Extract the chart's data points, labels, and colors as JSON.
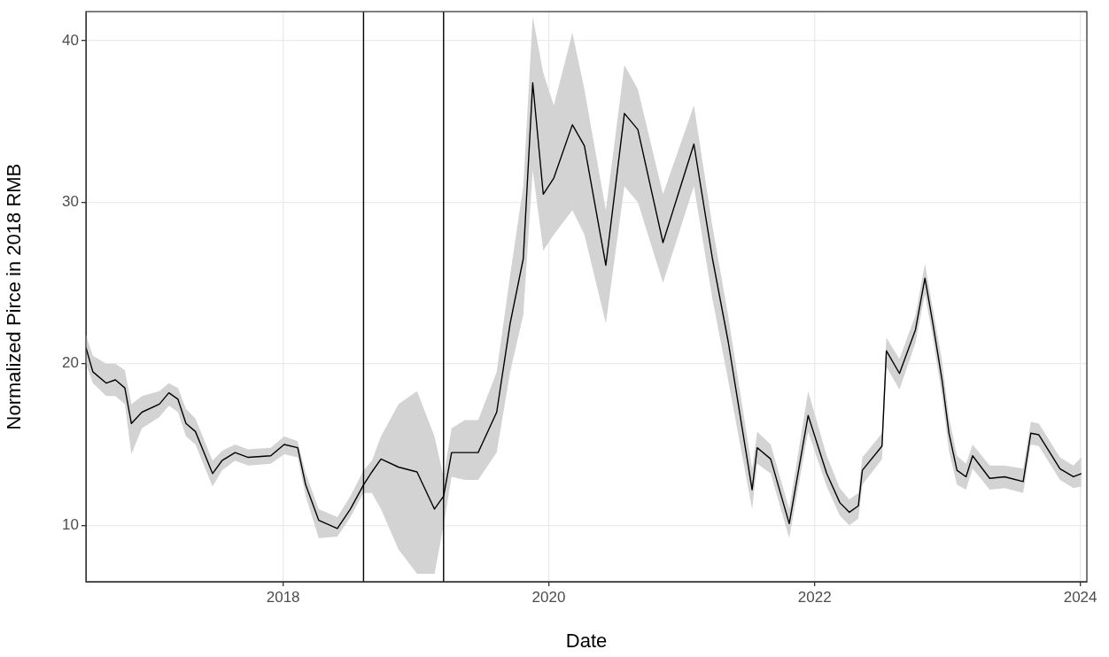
{
  "chart_data": {
    "type": "line",
    "xlabel": "Date",
    "ylabel": "Normalized Pirce in 2018 RMB",
    "x": [
      "2016-07-08",
      "2016-07-27",
      "2016-09-02",
      "2016-09-27",
      "2016-10-23",
      "2016-11-10",
      "2016-12-09",
      "2017-01-26",
      "2017-02-21",
      "2017-03-18",
      "2017-04-09",
      "2017-05-05",
      "2017-06-21",
      "2017-07-17",
      "2017-08-22",
      "2017-09-27",
      "2017-11-28",
      "2018-01-04",
      "2018-02-10",
      "2018-03-04",
      "2018-04-09",
      "2018-05-30",
      "2018-07-05",
      "2018-08-10",
      "2018-09-02",
      "2018-09-27",
      "2018-11-14",
      "2019-01-04",
      "2019-02-21",
      "2019-03-18",
      "2019-04-09",
      "2019-05-15",
      "2019-06-21",
      "2019-08-11",
      "2019-09-17",
      "2019-10-23",
      "2019-11-18",
      "2019-12-17",
      "2020-01-15",
      "2020-03-06",
      "2020-04-08",
      "2020-06-06",
      "2020-07-27",
      "2020-09-02",
      "2020-11-10",
      "2021-02-03",
      "2021-03-26",
      "2021-05-08",
      "2021-07-13",
      "2021-07-27",
      "2021-09-02",
      "2021-10-23",
      "2021-12-14",
      "2022-02-03",
      "2022-03-11",
      "2022-04-06",
      "2022-05-01",
      "2022-05-12",
      "2022-07-05",
      "2022-07-17",
      "2022-08-22",
      "2022-10-05",
      "2022-10-31",
      "2022-11-21",
      "2022-12-17",
      "2023-01-05",
      "2023-01-27",
      "2023-02-21",
      "2023-03-11",
      "2023-04-27",
      "2023-06-07",
      "2023-07-28",
      "2023-08-18",
      "2023-09-09",
      "2023-11-06",
      "2023-12-13",
      "2024-01-04"
    ],
    "series": [
      {
        "color": "#000000",
        "values": [
          21.0,
          19.5,
          18.8,
          19.0,
          18.5,
          16.3,
          17.0,
          17.5,
          18.2,
          17.8,
          16.3,
          15.8,
          13.2,
          14.0,
          14.5,
          14.2,
          14.3,
          15.0,
          14.8,
          12.5,
          10.3,
          9.8,
          11.0,
          12.5,
          13.3,
          14.1,
          13.6,
          13.3,
          11.0,
          11.8,
          14.5,
          14.5,
          14.5,
          17.0,
          22.5,
          26.5,
          37.4,
          30.5,
          31.5,
          34.8,
          33.5,
          26.1,
          35.5,
          34.5,
          27.5,
          33.6,
          26.5,
          21.4,
          12.2,
          14.8,
          14.1,
          10.1,
          16.8,
          13.2,
          11.4,
          10.8,
          11.2,
          13.4,
          14.9,
          20.8,
          19.4,
          22.1,
          25.3,
          22.6,
          19.0,
          15.7,
          13.4,
          13.0,
          14.3,
          12.9,
          13.0,
          12.7,
          15.7,
          15.6,
          13.5,
          13.0,
          13.2
        ],
        "lower": [
          20.0,
          18.8,
          18,
          18,
          17.5,
          14.4,
          16,
          16.7,
          17.4,
          17,
          15.5,
          15,
          12.4,
          13.4,
          14,
          13.7,
          13.8,
          14.4,
          14.2,
          11.8,
          9.2,
          9.3,
          10.5,
          12,
          12,
          11,
          8.5,
          7,
          7,
          10,
          13,
          12.8,
          12.8,
          14.5,
          19.5,
          23,
          32,
          27,
          28,
          29.5,
          28,
          22.5,
          31,
          30,
          25,
          31,
          24,
          19,
          11,
          13.8,
          13.2,
          9.2,
          15.8,
          12.4,
          10.6,
          10.0,
          10.4,
          12.5,
          14.1,
          19.8,
          18.4,
          21.3,
          24.3,
          21.7,
          18,
          14.6,
          12.5,
          12.2,
          13.5,
          12.2,
          12.3,
          12,
          15,
          14.9,
          12.8,
          12.3,
          12.4
        ],
        "upper": [
          21.8,
          20.5,
          20,
          20,
          19.6,
          17.5,
          18,
          18.3,
          18.8,
          18.5,
          17.2,
          16.6,
          14,
          14.6,
          15,
          14.7,
          14.8,
          15.5,
          15.2,
          13.2,
          11,
          10.5,
          11.8,
          13.4,
          14,
          15.5,
          17.5,
          18.3,
          15.5,
          13,
          16,
          16.5,
          16.5,
          19.5,
          25.5,
          31,
          41.5,
          38,
          36,
          40.5,
          37,
          29.5,
          38.5,
          37,
          30.5,
          36,
          28.5,
          23,
          13.5,
          15.8,
          15,
          11,
          18.3,
          14.3,
          12.3,
          11.6,
          12,
          14.2,
          15.7,
          21.6,
          20.3,
          23,
          26.2,
          23.5,
          20.2,
          16.7,
          14.3,
          13.8,
          15,
          13.7,
          13.7,
          13.5,
          16.4,
          16.3,
          14.2,
          13.7,
          14.2
        ]
      }
    ],
    "xlim": [
      "2016-07-08",
      "2024-01-19"
    ],
    "xticks": [
      "2018",
      "2020",
      "2022",
      "2024"
    ],
    "ylim": [
      6.5,
      41.8
    ],
    "yticks": [
      10,
      20,
      30,
      40
    ],
    "ref_lines": [
      {
        "axis": "x",
        "value": "2018-08-10",
        "color": "#000000"
      },
      {
        "axis": "x",
        "value": "2019-03-18",
        "color": "#000000"
      }
    ],
    "grid": true,
    "legend": false,
    "marker": "none",
    "line_style": "solid"
  }
}
